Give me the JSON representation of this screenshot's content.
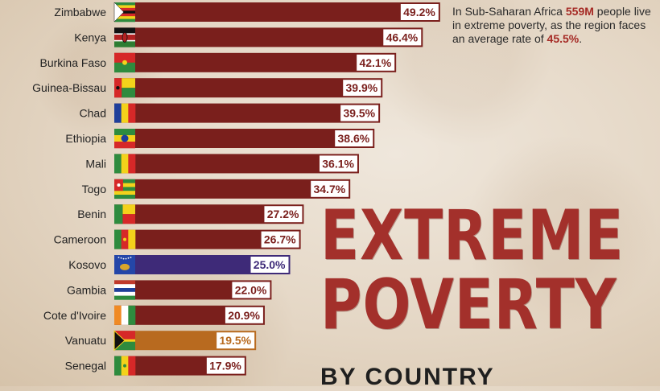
{
  "note": {
    "part1": "In Sub-Saharan Africa ",
    "number": "559M",
    "part2": " people live in extreme poverty, as the region faces an average rate of ",
    "rate": "45.5%",
    "part3": "."
  },
  "title": {
    "line1": "EXTREME",
    "line2": "POVERTY"
  },
  "subtitle": "BY COUNTRY",
  "colors": {
    "bar_default": "#7a1f1c",
    "bar_kosovo": "#3e2a78",
    "bar_vanuatu": "#b86a1f",
    "label_bg": "#ffffff",
    "title": "#a3302b"
  },
  "chart_data": {
    "type": "bar",
    "orientation": "horizontal",
    "categories": [
      "Zimbabwe",
      "Kenya",
      "Burkina Faso",
      "Guinea-Bissau",
      "Chad",
      "Ethiopia",
      "Mali",
      "Togo",
      "Benin",
      "Cameroon",
      "Kosovo",
      "Gambia",
      "Cote d'Ivoire",
      "Vanuatu",
      "Senegal"
    ],
    "values": [
      49.2,
      46.4,
      42.1,
      39.9,
      39.5,
      38.6,
      36.1,
      34.7,
      27.2,
      26.7,
      25.0,
      22.0,
      20.9,
      19.5,
      17.9
    ],
    "value_labels": [
      "49.2%",
      "46.4%",
      "42.1%",
      "39.9%",
      "39.5%",
      "38.6%",
      "36.1%",
      "34.7%",
      "27.2%",
      "26.7%",
      "25.0%",
      "22.0%",
      "20.9%",
      "19.5%",
      "17.9%"
    ],
    "bar_colors": [
      "#7a1f1c",
      "#7a1f1c",
      "#7a1f1c",
      "#7a1f1c",
      "#7a1f1c",
      "#7a1f1c",
      "#7a1f1c",
      "#7a1f1c",
      "#7a1f1c",
      "#7a1f1c",
      "#3e2a78",
      "#7a1f1c",
      "#7a1f1c",
      "#b86a1f",
      "#7a1f1c"
    ],
    "flags": [
      "zimbabwe-flag-icon",
      "kenya-flag-icon",
      "burkina-faso-flag-icon",
      "guinea-bissau-flag-icon",
      "chad-flag-icon",
      "ethiopia-flag-icon",
      "mali-flag-icon",
      "togo-flag-icon",
      "benin-flag-icon",
      "cameroon-flag-icon",
      "kosovo-flag-icon",
      "gambia-flag-icon",
      "cote-divoire-flag-icon",
      "vanuatu-flag-icon",
      "senegal-flag-icon"
    ],
    "unit": "%",
    "xlim": [
      0,
      50
    ],
    "grid": false,
    "legend": "none"
  }
}
